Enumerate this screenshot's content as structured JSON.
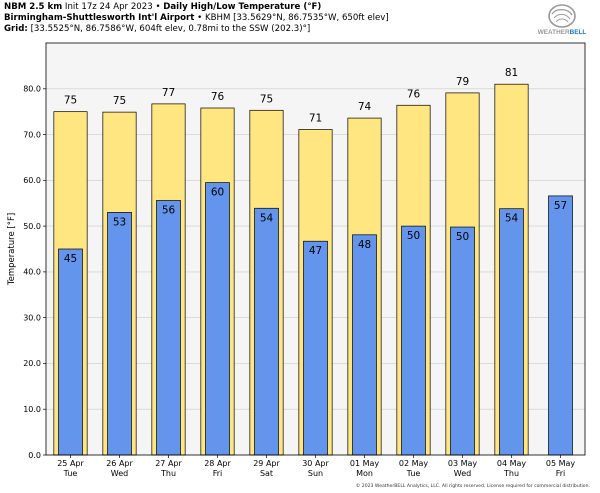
{
  "header": {
    "model": "NBM 2.5 km",
    "init": "Init 17z 24 Apr 2023",
    "sep": "•",
    "product": "Daily High/Low Temperature (°F)",
    "station_name": "Birmingham-Shuttlesworth Int'l Airport",
    "station_info": "KBHM [33.5629°N, 86.7535°W, 650ft elev]",
    "grid_label": "Grid:",
    "grid_info": "[33.5525°N, 86.7586°W, 604ft elev, 0.78mi to the SSW (202.3)°]"
  },
  "logo": {
    "text_main": "WEATHER",
    "text_accent": "BELL",
    "accent_color": "#1b75bb"
  },
  "footer": {
    "text": "© 2023 WeatherBELL Analytics, LLC. All rights reserved. License required for commercial distribution."
  },
  "colors": {
    "high": "#ffe680",
    "low": "#6495ed",
    "plot_bg": "#f5f5f5",
    "grid": "#cccccc"
  },
  "chart_data": {
    "type": "bar",
    "ylabel": "Temperature [°F]",
    "ylim": [
      0,
      90
    ],
    "yticks": [
      "0.0",
      "10.0",
      "20.0",
      "30.0",
      "40.0",
      "50.0",
      "60.0",
      "70.0",
      "80.0"
    ],
    "grid": true,
    "categories": [
      [
        "25 Apr",
        "Tue"
      ],
      [
        "26 Apr",
        "Wed"
      ],
      [
        "27 Apr",
        "Thu"
      ],
      [
        "28 Apr",
        "Fri"
      ],
      [
        "29 Apr",
        "Sat"
      ],
      [
        "30 Apr",
        "Sun"
      ],
      [
        "01 May",
        "Mon"
      ],
      [
        "02 May",
        "Tue"
      ],
      [
        "03 May",
        "Wed"
      ],
      [
        "04 May",
        "Thu"
      ],
      [
        "05 May",
        "Fri"
      ]
    ],
    "series": [
      {
        "name": "High",
        "values": [
          75,
          74.9,
          76.7,
          75.8,
          75.3,
          71.1,
          73.6,
          76.4,
          79.1,
          81,
          null
        ],
        "labels": [
          "75",
          "75",
          "77",
          "76",
          "75",
          "71",
          "74",
          "76",
          "79",
          "81",
          ""
        ]
      },
      {
        "name": "Low",
        "values": [
          45,
          53,
          55.6,
          59.5,
          53.9,
          46.7,
          48.1,
          50,
          49.8,
          53.8,
          56.6
        ],
        "labels": [
          "45",
          "53",
          "56",
          "60",
          "54",
          "47",
          "48",
          "50",
          "50",
          "54",
          "57"
        ]
      }
    ]
  }
}
